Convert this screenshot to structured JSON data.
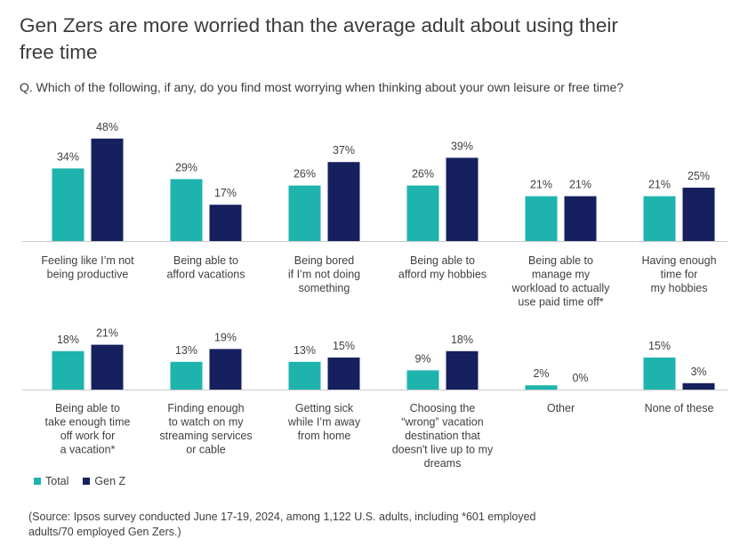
{
  "title": "Gen Zers are more worried than the average adult about using their free time",
  "question": "Q. Which of the following, if any, do you find most worrying when thinking about your own leisure or free time?",
  "colors": {
    "total": "#1fb3ad",
    "genz": "#16205e",
    "axis": "#c8c8c8",
    "text": "#404040"
  },
  "legend": [
    {
      "name": "Total",
      "color": "#1fb3ad"
    },
    {
      "name": "Gen Z",
      "color": "#16205e"
    }
  ],
  "source": "(Source: Ipsos survey conducted June 17-19, 2024, among 1,122 U.S. adults, including *601 employed adults/70 employed Gen Zers.)",
  "chart_data": {
    "type": "bar",
    "unit": "%",
    "series": [
      {
        "name": "Total",
        "values": [
          34,
          29,
          26,
          26,
          21,
          21,
          18,
          13,
          13,
          9,
          2,
          15
        ]
      },
      {
        "name": "Gen Z",
        "values": [
          48,
          17,
          37,
          39,
          21,
          25,
          21,
          19,
          15,
          18,
          0,
          3
        ]
      }
    ],
    "categories": [
      "Feeling like I’m not being productive",
      "Being able to afford vacations",
      "Being bored if I’m not doing something",
      "Being able to afford my hobbies",
      "Being able to manage my workload to actually use paid time off*",
      "Having enough time for my hobbies",
      "Being able to take enough time off work for a vacation*",
      "Finding enough to watch on my streaming services or cable",
      "Getting sick while I’m away from home",
      "Choosing the “wrong” vacation destination that doesn't live up to my dreams",
      "Other",
      "None of these"
    ],
    "category_lines": [
      [
        "Feeling like I’m not",
        "being productive"
      ],
      [
        "Being able to",
        "afford vacations"
      ],
      [
        "Being bored",
        "if I’m not doing",
        "something"
      ],
      [
        "Being able to",
        "afford my hobbies"
      ],
      [
        "Being able to",
        "manage my",
        "workload to actually",
        "use paid time off*"
      ],
      [
        "Having enough",
        "time for",
        "my hobbies"
      ],
      [
        "Being able to",
        "take enough time",
        "off work for",
        "a vacation*"
      ],
      [
        "Finding enough",
        "to watch on my",
        "streaming services",
        "or cable"
      ],
      [
        "Getting sick",
        "while I’m away",
        "from home"
      ],
      [
        "Choosing the",
        "“wrong” vacation",
        "destination that",
        "doesn't live up to my",
        "dreams"
      ],
      [
        "Other"
      ],
      [
        "None of these"
      ]
    ]
  }
}
